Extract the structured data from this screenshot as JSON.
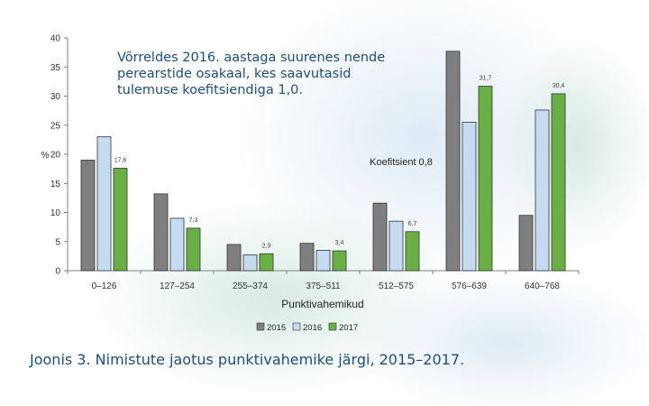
{
  "chart_data": {
    "type": "bar",
    "ylabel": "%",
    "xlabel": "Punktivahemikud",
    "ylim": [
      0,
      40
    ],
    "yticks": [
      0,
      5,
      10,
      15,
      20,
      25,
      30,
      35,
      40
    ],
    "grid": false,
    "legend_position": "bottom",
    "categories": [
      "0–126",
      "127–254",
      "255–374",
      "375–511",
      "512–575",
      "576–639",
      "640–768"
    ],
    "series": [
      {
        "name": "2015",
        "color": "#7f7f7f",
        "values": [
          19,
          13.2,
          4.5,
          4.7,
          11.6,
          37.7,
          9.5
        ]
      },
      {
        "name": "2016",
        "color": "#c5dbf1",
        "values": [
          23,
          9,
          2.7,
          3.5,
          8.5,
          25.5,
          27.6
        ]
      },
      {
        "name": "2017",
        "color": "#6aaf45",
        "values": [
          17.6,
          7.3,
          2.9,
          3.4,
          6.7,
          31.7,
          30.4
        ]
      }
    ],
    "data_labels": [
      "17,6",
      "7,3",
      "2,9",
      "3,4",
      "6,7",
      "31,7",
      "30,4"
    ],
    "annotations": {
      "coefficient": "Koefitsient 0,8",
      "note": "Võrreldes 2016. aastaga suurenes nende perearstide osakaal, kes saavutasid tulemuse koefitsiendiga 1,0."
    }
  },
  "caption": "Joonis 3. Nimistute jaotus punktivahemike järgi, 2015–2017."
}
